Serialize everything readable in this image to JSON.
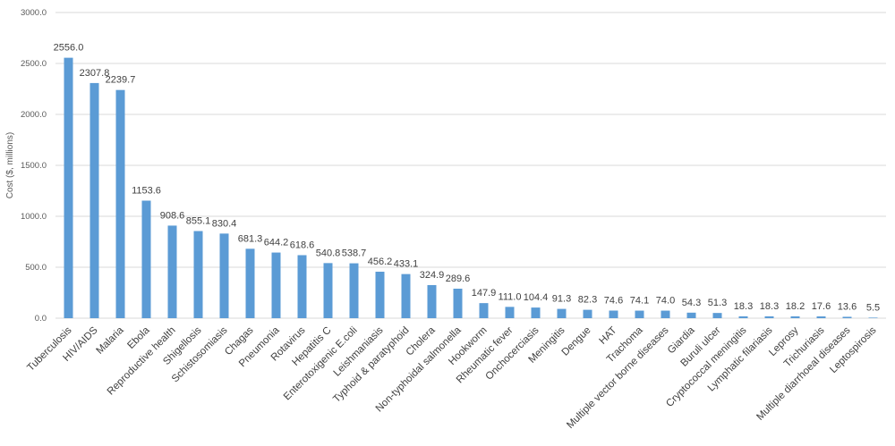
{
  "chart_data": {
    "type": "bar",
    "title": "",
    "xlabel": "",
    "ylabel": "Cost ($, millions)",
    "ylim": [
      0,
      3000
    ],
    "yticks": [
      "0.0",
      "500.0",
      "1000.0",
      "1500.0",
      "2000.0",
      "2500.0",
      "3000.0"
    ],
    "grid": true,
    "legend": "none",
    "bar_color": "#5b9bd5",
    "categories": [
      "Tuberculosis",
      "HIV/AIDS",
      "Malaria",
      "Ebola",
      "Reproductive health",
      "Shigellosis",
      "Schistosomiasis",
      "Chagas",
      "Pneumonia",
      "Rotavirus",
      "Hepatitis C",
      "Enterotoxigenic E.coli",
      "Leishmaniasis",
      "Typhoid & paratyphoid",
      "Cholera",
      "Non-typhoidal salmonella",
      "Hookworm",
      "Rheumatic fever",
      "Onchocerciasis",
      "Meningitis",
      "Dengue",
      "HAT",
      "Trachoma",
      "Multiple vector borne diseases",
      "Giardia",
      "Buruli ulcer",
      "Cryptococcal meningitis",
      "Lymphatic filariasis",
      "Leprosy",
      "Trichuriasis",
      "Multiple diarrhoeal diseases",
      "Leptospirosis"
    ],
    "values": [
      2556.0,
      2307.8,
      2239.7,
      1153.6,
      908.6,
      855.1,
      830.4,
      681.3,
      644.2,
      618.6,
      540.8,
      538.7,
      456.2,
      433.1,
      324.9,
      289.6,
      147.9,
      111.0,
      104.4,
      91.3,
      82.3,
      74.6,
      74.1,
      74.0,
      54.3,
      51.3,
      18.3,
      18.3,
      18.2,
      17.6,
      13.6,
      5.5
    ],
    "value_labels": [
      "2556.0",
      "2307.8",
      "2239.7",
      "1153.6",
      "908.6",
      "855.1",
      "830.4",
      "681.3",
      "644.2",
      "618.6",
      "540.8",
      "538.7",
      "456.2",
      "433.1",
      "324.9",
      "289.6",
      "147.9",
      "111.0",
      "104.4",
      "91.3",
      "82.3",
      "74.6",
      "74.1",
      "74.0",
      "54.3",
      "51.3",
      "18.3",
      "18.3",
      "18.2",
      "17.6",
      "13.6",
      "5.5"
    ]
  }
}
